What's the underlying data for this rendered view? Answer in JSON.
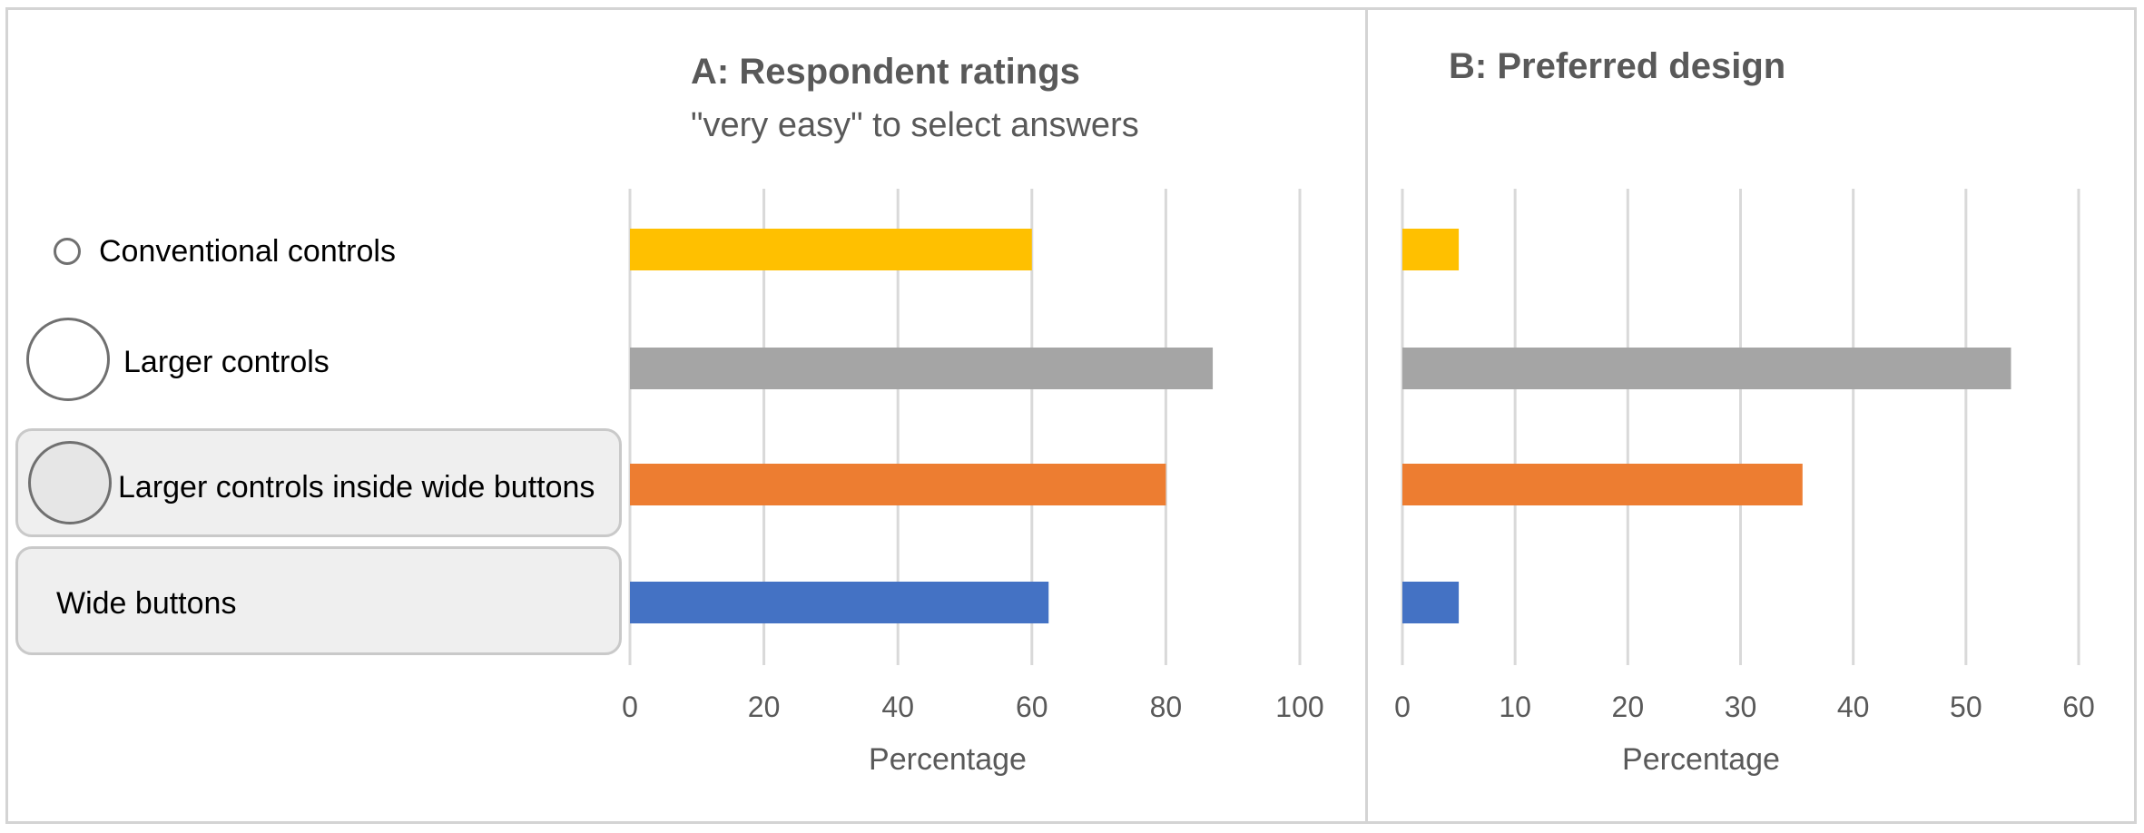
{
  "legend": {
    "items": [
      {
        "label": "Conventional controls",
        "control": "small-radio",
        "color": "#FFC000"
      },
      {
        "label": "Larger controls",
        "control": "large-radio",
        "color": "#A5A5A5"
      },
      {
        "label": "Larger controls inside wide buttons",
        "control": "large-radio-in-button",
        "color": "#ED7D31"
      },
      {
        "label": "Wide buttons",
        "control": "button-only",
        "color": "#4472C4"
      }
    ]
  },
  "chart_data": [
    {
      "type": "bar",
      "orientation": "horizontal",
      "title": "A: Respondent ratings",
      "subtitle": "\"very easy\" to select answers",
      "xlabel": "Percentage",
      "xlim": [
        0,
        100
      ],
      "xticks": [
        0,
        20,
        40,
        60,
        80,
        100
      ],
      "grid": true,
      "categories": [
        "Conventional controls",
        "Larger controls",
        "Larger controls inside wide buttons",
        "Wide buttons"
      ],
      "values": [
        60,
        87,
        80,
        62.5
      ],
      "colors": [
        "#FFC000",
        "#A5A5A5",
        "#ED7D31",
        "#4472C4"
      ]
    },
    {
      "type": "bar",
      "orientation": "horizontal",
      "title": "B: Preferred design",
      "xlabel": "Percentage",
      "xlim": [
        0,
        60
      ],
      "xticks": [
        0,
        10,
        20,
        30,
        40,
        50,
        60
      ],
      "grid": true,
      "categories": [
        "Conventional controls",
        "Larger controls",
        "Larger controls inside wide buttons",
        "Wide buttons"
      ],
      "values": [
        5,
        54,
        35.5,
        5
      ],
      "colors": [
        "#FFC000",
        "#A5A5A5",
        "#ED7D31",
        "#4472C4"
      ]
    }
  ]
}
